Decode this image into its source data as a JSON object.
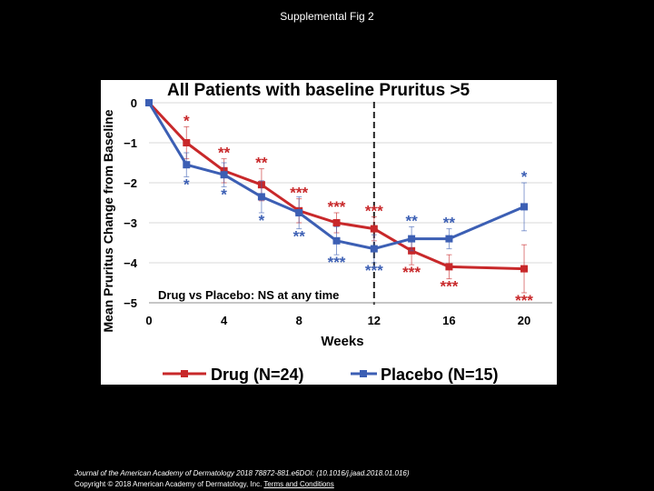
{
  "slide_title": "Supplemental Fig 2",
  "footer": {
    "citation": "Journal of the American Academy of Dermatology 2018 78872-881.e6DOI: (10.1016/j.jaad.2018.01.016)",
    "copyright": "Copyright © 2018 American Academy of Dermatology, Inc.",
    "terms_link": "Terms and Conditions"
  },
  "colors": {
    "drug": "#c8282a",
    "placebo": "#3c5fb4",
    "grid": "#d9d9d9"
  },
  "chart_data": {
    "type": "line",
    "title": "All Patients with baseline Pruritus >5",
    "xlabel": "Weeks",
    "ylabel": "Mean  Pruritus  Change from Baseline",
    "xlim": [
      0,
      21.5
    ],
    "ylim": [
      -5,
      0
    ],
    "xticks": [
      0,
      4,
      8,
      12,
      16,
      20
    ],
    "yticks": [
      0,
      -1,
      -2,
      -3,
      -4,
      -5
    ],
    "vline_x": 12,
    "annotation": "Drug vs Placebo:  NS at any time",
    "series": [
      {
        "name": "Drug (N=24)",
        "color": "#c8282a",
        "x": [
          0,
          2,
          4,
          6,
          8,
          10,
          12,
          14,
          16,
          20
        ],
        "values": [
          0,
          -1.0,
          -1.7,
          -2.05,
          -2.7,
          -3.0,
          -3.15,
          -3.7,
          -4.1,
          -4.15
        ],
        "err": [
          0,
          0.4,
          0.3,
          0.4,
          0.3,
          0.25,
          0.3,
          0.35,
          0.3,
          0.6
        ],
        "sig": [
          "",
          "*",
          "**",
          "**",
          "***",
          "***",
          "***",
          "***",
          "***",
          "***"
        ],
        "sig_pos": [
          "",
          "above",
          "above",
          "above",
          "above",
          "above",
          "above",
          "below",
          "below",
          "below"
        ]
      },
      {
        "name": "Placebo (N=15)",
        "color": "#3c5fb4",
        "x": [
          0,
          2,
          4,
          6,
          8,
          10,
          12,
          14,
          16,
          20
        ],
        "values": [
          0,
          -1.55,
          -1.8,
          -2.35,
          -2.75,
          -3.45,
          -3.65,
          -3.4,
          -3.4,
          -2.6
        ],
        "err": [
          0,
          0.3,
          0.3,
          0.4,
          0.4,
          0.35,
          0.35,
          0.3,
          0.25,
          0.6
        ],
        "sig": [
          "",
          "*",
          "*",
          "*",
          "**",
          "***",
          "***",
          "**",
          "**",
          "*"
        ],
        "sig_pos": [
          "",
          "below",
          "below",
          "below",
          "below",
          "below",
          "below",
          "above",
          "above",
          "above"
        ]
      }
    ]
  }
}
